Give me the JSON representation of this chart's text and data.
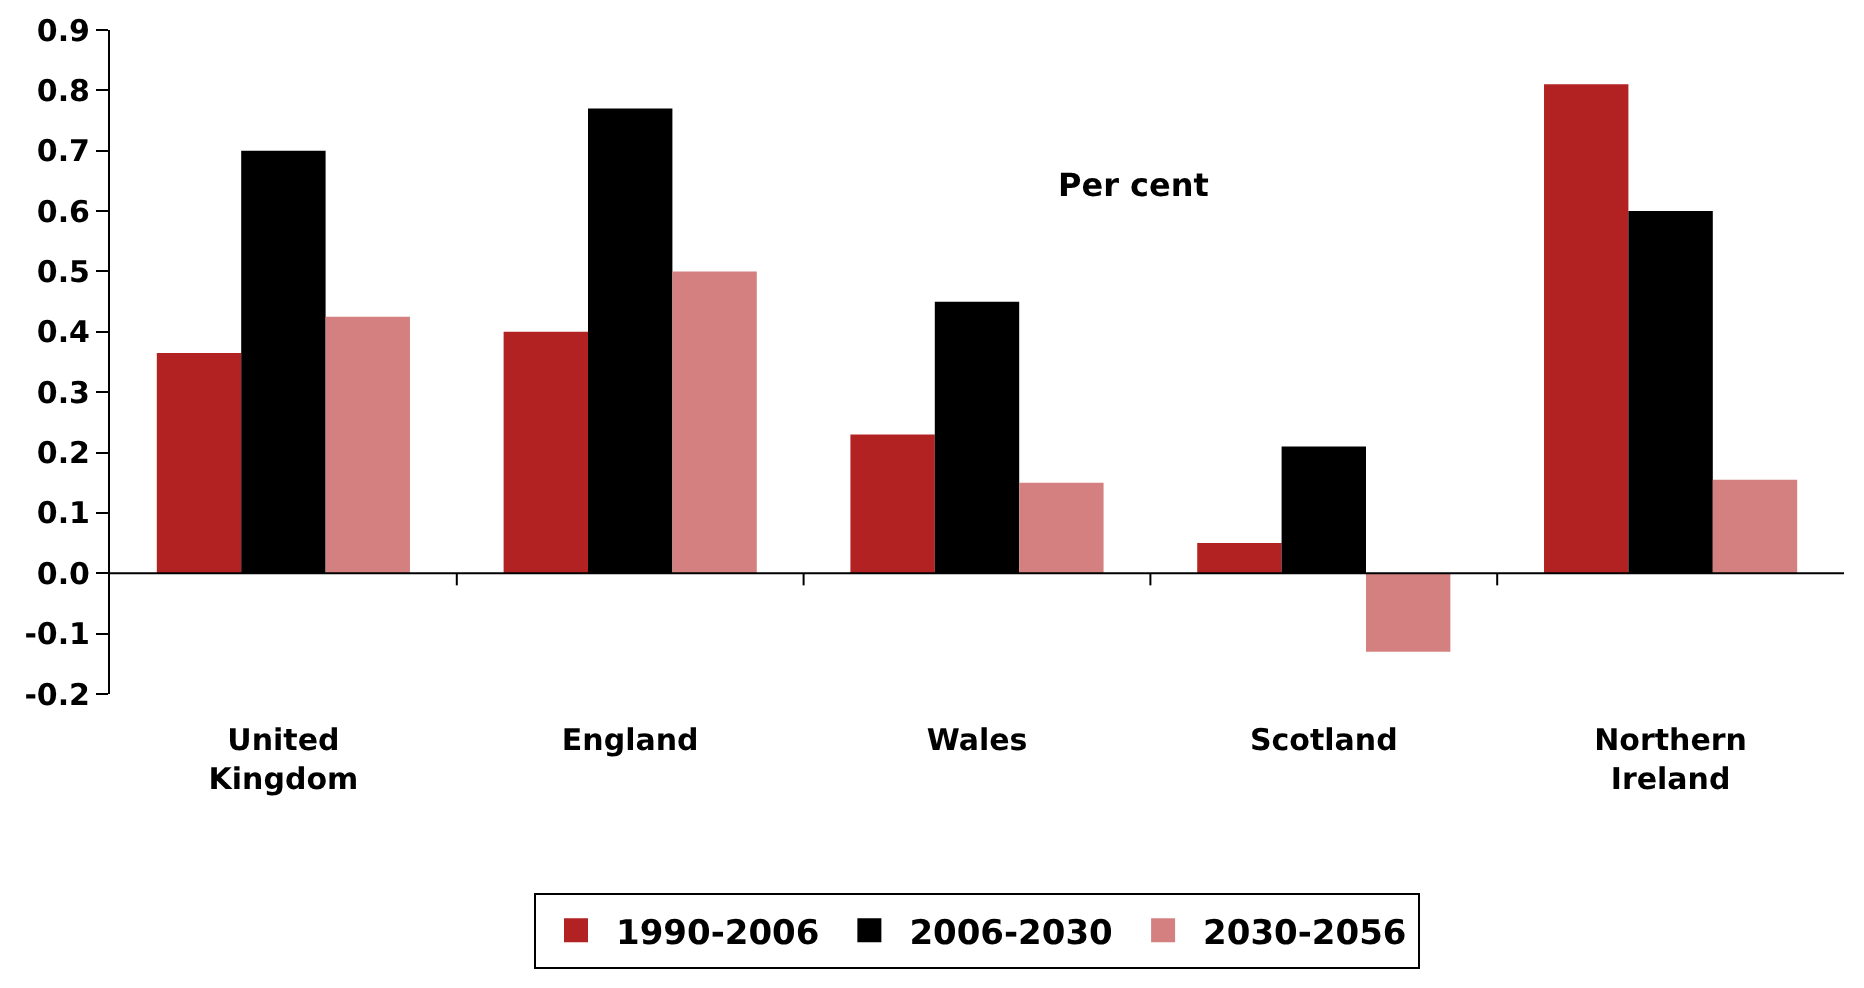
{
  "chart_data": {
    "type": "bar",
    "categories": [
      "United Kingdom",
      "England",
      "Wales",
      "Scotland",
      "Northern Ireland"
    ],
    "series": [
      {
        "name": "1990-2006",
        "color": "#b22222",
        "values": [
          0.365,
          0.4,
          0.23,
          0.05,
          0.81
        ]
      },
      {
        "name": "2006-2030",
        "color": "#000000",
        "values": [
          0.7,
          0.77,
          0.45,
          0.21,
          0.6
        ]
      },
      {
        "name": "2030-2056",
        "color": "#d48080",
        "values": [
          0.425,
          0.5,
          0.15,
          -0.13,
          0.155
        ]
      }
    ],
    "ylim": [
      -0.2,
      0.9
    ],
    "yticks": [
      -0.2,
      -0.1,
      {
        "value": 0,
        "label": "0.0"
      },
      0.1,
      0.2,
      0.3,
      0.4,
      0.5,
      0.6,
      0.7,
      0.8,
      0.9
    ],
    "annotations": [
      "Per cent"
    ],
    "legend": "bottom"
  }
}
